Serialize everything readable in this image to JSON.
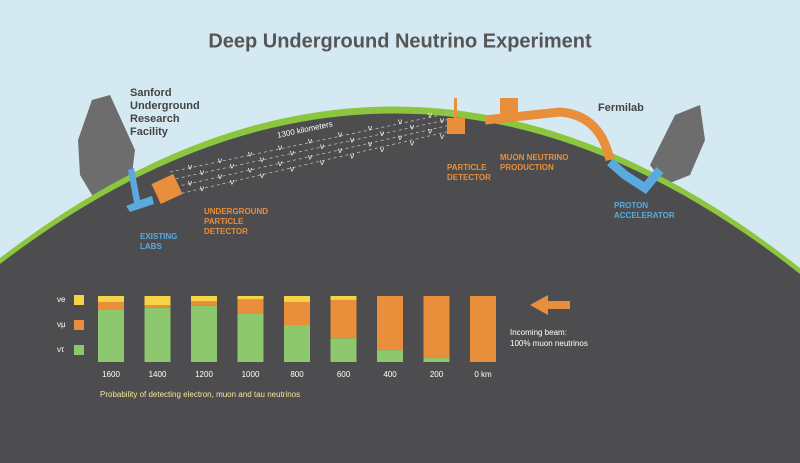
{
  "title": "Deep Underground Neutrino Experiment",
  "diagram": {
    "sanford": [
      "Sanford",
      "Underground",
      "Research",
      "Facility"
    ],
    "fermilab": "Fermilab",
    "distance": "1300 kilometers",
    "beam_symbol": "ν",
    "particle_detector": [
      "PARTICLE",
      "DETECTOR"
    ],
    "muon_production": [
      "MUON NEUTRINO",
      "PRODUCTION"
    ],
    "underground_detector": [
      "UNDERGROUND",
      "PARTICLE",
      "DETECTOR"
    ],
    "existing_labs": [
      "EXISTING",
      "LABS"
    ],
    "proton_accelerator": [
      "PROTON",
      "ACCELERATOR"
    ],
    "incoming_beam": [
      "Incoming beam:",
      "100% muon neutrinos"
    ]
  },
  "chart_data": {
    "type": "stacked-bar",
    "caption": "Probability of detecting electron, muon and tau neutrinos",
    "categories": [
      "1600",
      "1400",
      "1200",
      "1000",
      "800",
      "600",
      "400",
      "200",
      "0 km"
    ],
    "ylim": [
      0,
      100
    ],
    "series": [
      {
        "name": "νe",
        "color": "#f5d547",
        "values": [
          9,
          14,
          8,
          5,
          9,
          6,
          0,
          0,
          0
        ]
      },
      {
        "name": "νμ",
        "color": "#e98e3a",
        "values": [
          11,
          4,
          7,
          21,
          35,
          58,
          82,
          94,
          100
        ]
      },
      {
        "name": "ντ",
        "color": "#8dc86f",
        "values": [
          80,
          82,
          85,
          74,
          56,
          36,
          18,
          6,
          0
        ]
      }
    ]
  }
}
